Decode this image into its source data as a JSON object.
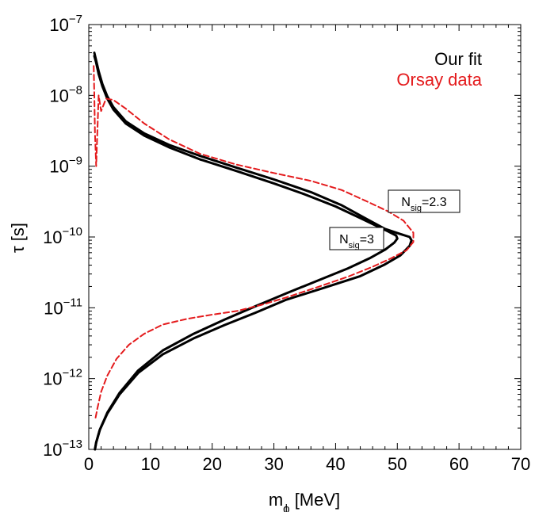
{
  "chart_data": {
    "type": "line",
    "title": "",
    "xlabel": "m",
    "xlabel_sub": "ϕ",
    "xlabel_unit": " [MeV]",
    "ylabel": "τ [s]",
    "xlim": [
      0,
      70
    ],
    "ylim": [
      1e-13,
      1e-07
    ],
    "yscale": "log",
    "grid": false,
    "x_ticks": [
      "0",
      "10",
      "20",
      "30",
      "40",
      "50",
      "60",
      "70"
    ],
    "y_ticks": [
      "10^-13",
      "10^-12",
      "10^-11",
      "10^-10",
      "10^-9",
      "10^-8",
      "10^-7"
    ],
    "legend": {
      "position": "top-right",
      "entries": [
        {
          "label": "Our fit",
          "color": "#000000"
        },
        {
          "label": "Orsay data",
          "color": "#e41a1c"
        }
      ]
    },
    "annotations": [
      {
        "base": "N",
        "sub": "sig",
        "rest": "=2.3"
      },
      {
        "base": "N",
        "sub": "sig",
        "rest": "=3"
      }
    ],
    "series": [
      {
        "label_ref": "N_sig=2.3",
        "group": "Our fit",
        "color": "#000000",
        "style": "solid",
        "x": [
          0.9,
          1.2,
          1.6,
          2.2,
          3.0,
          4.0,
          6.0,
          9.0,
          13.0,
          18.0,
          24.0,
          30.0,
          36.0,
          41.0,
          45.0,
          48.0,
          50.5,
          52.0,
          52.3,
          52.0,
          50.5,
          48.0,
          44.0,
          38.0,
          32.0,
          27.0,
          22.0,
          17.0,
          12.0,
          8.0,
          5.0,
          3.0,
          1.8,
          1.2,
          1.0
        ],
        "y": [
          4e-08,
          3.1e-08,
          2.2e-08,
          1.45e-08,
          9.7e-09,
          6.8e-09,
          4.3e-09,
          2.9e-09,
          2e-09,
          1.4e-09,
          9.5e-10,
          6.5e-10,
          4.3e-10,
          2.8e-10,
          1.8e-10,
          1.3e-10,
          1.1e-10,
          1e-10,
          9e-11,
          7.5e-11,
          5.5e-11,
          4.1e-11,
          2.8e-11,
          1.9e-11,
          1.3e-11,
          8.5e-12,
          5.7e-12,
          3.7e-12,
          2.2e-12,
          1.2e-12,
          6e-13,
          3.2e-13,
          1.9e-13,
          1.25e-13,
          1e-13
        ]
      },
      {
        "label_ref": "N_sig=3",
        "group": "Our fit",
        "color": "#000000",
        "style": "solid",
        "x": [
          0.9,
          1.2,
          1.6,
          2.2,
          3.0,
          4.0,
          6.0,
          9.0,
          13.0,
          18.0,
          24.0,
          30.0,
          35.0,
          40.0,
          44.0,
          46.5,
          48.5,
          49.8,
          50.0,
          49.5,
          48.0,
          45.5,
          42.0,
          37.0,
          32.0,
          27.0,
          22.0,
          17.0,
          12.0,
          8.0,
          5.0,
          3.0,
          1.8,
          1.2,
          1.0
        ],
        "y": [
          3.6e-08,
          2.9e-08,
          2e-08,
          1.35e-08,
          9e-09,
          6.3e-09,
          4e-09,
          2.7e-09,
          1.85e-09,
          1.25e-09,
          8.5e-10,
          5.7e-10,
          4e-10,
          2.7e-10,
          1.85e-10,
          1.45e-10,
          1.2e-10,
          1.05e-10,
          9.5e-11,
          8.3e-11,
          6.6e-11,
          5e-11,
          3.6e-11,
          2.4e-11,
          1.6e-11,
          1.05e-11,
          6.8e-12,
          4.3e-12,
          2.5e-12,
          1.3e-12,
          6.3e-13,
          3.3e-13,
          1.9e-13,
          1.25e-13,
          1e-13
        ]
      },
      {
        "label_ref": "Orsay data",
        "group": "Orsay data",
        "color": "#e41a1c",
        "style": "dashed",
        "x": [
          0.8,
          0.9,
          1.0,
          1.2,
          1.6,
          2.0,
          2.8,
          4.0,
          6.0,
          9.0,
          13.0,
          18.0,
          24.0,
          30.0,
          36.0,
          41.0,
          45.0,
          48.5,
          51.0,
          52.6,
          52.6,
          51.5,
          49.0,
          46.0,
          42.0,
          37.0,
          32.0,
          28.0,
          24.0,
          20.0,
          16.0,
          12.0,
          9.0,
          6.5,
          4.5,
          3.0,
          2.0,
          1.4,
          1.1,
          0.95
        ],
        "y": [
          2.6e-08,
          1e-08,
          3e-09,
          1e-09,
          1e-08,
          6e-09,
          9e-09,
          8.6e-09,
          6.5e-09,
          4e-09,
          2.4e-09,
          1.5e-09,
          1.05e-09,
          8e-10,
          6.2e-10,
          4.6e-10,
          3.2e-10,
          2.3e-10,
          1.7e-10,
          1.15e-10,
          8.5e-11,
          6.5e-11,
          5e-11,
          3.8e-11,
          2.75e-11,
          1.95e-11,
          1.4e-11,
          1.1e-11,
          9e-12,
          8e-12,
          7e-12,
          5.8e-12,
          4.3e-12,
          3e-12,
          1.9e-12,
          1.1e-12,
          6.5e-13,
          3.8e-13,
          2.8e-13,
          2.6e-13
        ]
      }
    ]
  }
}
